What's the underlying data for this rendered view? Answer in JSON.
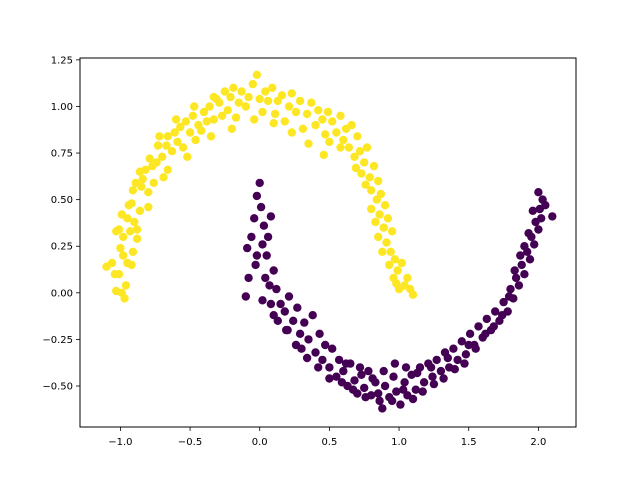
{
  "chart_data": {
    "type": "scatter",
    "title": "",
    "xlabel": "",
    "ylabel": "",
    "xlim": [
      -1.29,
      2.27
    ],
    "ylim": [
      -0.72,
      1.26
    ],
    "grid": false,
    "legend": "none",
    "marker": "circle",
    "xticks": [
      -1.0,
      -0.5,
      0.0,
      0.5,
      1.0,
      1.5,
      2.0
    ],
    "xtick_labels": [
      "−1.0",
      "−0.5",
      "0.0",
      "0.5",
      "1.0",
      "1.5",
      "2.0"
    ],
    "yticks": [
      -0.5,
      -0.25,
      0.0,
      0.25,
      0.5,
      0.75,
      1.0,
      1.25
    ],
    "ytick_labels": [
      "−0.50",
      "−0.25",
      "0.00",
      "0.25",
      "0.50",
      "0.75",
      "1.00",
      "1.25"
    ],
    "series": [
      {
        "color": "#fde725",
        "points": [
          [
            -1.1,
            0.14
          ],
          [
            -1.06,
            0.16
          ],
          [
            -1.03,
            0.33
          ],
          [
            -1.01,
            0.34
          ],
          [
            -1.0,
            0.24
          ],
          [
            -1.01,
            0.1
          ],
          [
            -0.99,
            0.0
          ],
          [
            -1.03,
            0.01
          ],
          [
            -0.97,
            -0.03
          ],
          [
            -0.96,
            0.04
          ],
          [
            -0.98,
            0.2
          ],
          [
            -0.99,
            0.42
          ],
          [
            -0.95,
            0.4
          ],
          [
            -0.94,
            0.47
          ],
          [
            -0.93,
            0.33
          ],
          [
            -0.92,
            0.15
          ],
          [
            -0.91,
            0.22
          ],
          [
            -0.91,
            0.55
          ],
          [
            -0.89,
            0.59
          ],
          [
            -0.9,
            0.38
          ],
          [
            -0.88,
            0.29
          ],
          [
            -0.86,
            0.44
          ],
          [
            -0.85,
            0.57
          ],
          [
            -0.84,
            0.61
          ],
          [
            -0.82,
            0.66
          ],
          [
            -0.8,
            0.54
          ],
          [
            -0.79,
            0.72
          ],
          [
            -0.77,
            0.68
          ],
          [
            -0.76,
            0.59
          ],
          [
            -0.74,
            0.7
          ],
          [
            -0.73,
            0.79
          ],
          [
            -0.7,
            0.73
          ],
          [
            -0.69,
            0.62
          ],
          [
            -0.67,
            0.79
          ],
          [
            -0.66,
            0.84
          ],
          [
            -0.63,
            0.76
          ],
          [
            -0.61,
            0.86
          ],
          [
            -0.59,
            0.81
          ],
          [
            -0.57,
            0.89
          ],
          [
            -0.55,
            0.78
          ],
          [
            -0.53,
            0.92
          ],
          [
            -0.5,
            0.86
          ],
          [
            -0.48,
            0.95
          ],
          [
            -0.46,
            0.82
          ],
          [
            -0.44,
            0.9
          ],
          [
            -0.42,
            0.87
          ],
          [
            -0.4,
            0.97
          ],
          [
            -0.38,
            0.92
          ],
          [
            -0.36,
            1.0
          ],
          [
            -0.33,
            0.93
          ],
          [
            -0.31,
            1.04
          ],
          [
            -0.29,
            1.02
          ],
          [
            -0.27,
            0.95
          ],
          [
            -0.25,
            1.08
          ],
          [
            -0.23,
            0.98
          ],
          [
            -0.21,
            1.05
          ],
          [
            -0.19,
            1.1
          ],
          [
            -0.17,
            0.94
          ],
          [
            -0.15,
            1.02
          ],
          [
            -0.13,
            1.08
          ],
          [
            -0.1,
            1.0
          ],
          [
            -0.08,
            1.05
          ],
          [
            -0.05,
            1.12
          ],
          [
            -0.02,
            1.17
          ],
          [
            0.0,
            1.04
          ],
          [
            0.02,
            0.97
          ],
          [
            0.04,
            1.08
          ],
          [
            0.06,
            1.03
          ],
          [
            0.09,
            1.1
          ],
          [
            0.11,
            0.96
          ],
          [
            0.13,
            1.03
          ],
          [
            0.16,
            1.06
          ],
          [
            0.18,
            0.92
          ],
          [
            0.21,
            1.0
          ],
          [
            0.23,
            1.07
          ],
          [
            0.26,
            0.97
          ],
          [
            0.29,
            1.03
          ],
          [
            0.31,
            0.88
          ],
          [
            0.34,
            0.96
          ],
          [
            0.37,
            1.02
          ],
          [
            0.4,
            0.9
          ],
          [
            0.42,
            0.98
          ],
          [
            0.45,
            0.93
          ],
          [
            0.47,
            0.85
          ],
          [
            0.49,
            0.97
          ],
          [
            0.5,
            0.81
          ],
          [
            0.52,
            0.92
          ],
          [
            0.55,
            0.86
          ],
          [
            0.58,
            0.95
          ],
          [
            0.6,
            0.82
          ],
          [
            0.62,
            0.88
          ],
          [
            0.64,
            0.78
          ],
          [
            0.66,
            0.9
          ],
          [
            0.68,
            0.73
          ],
          [
            0.7,
            0.84
          ],
          [
            0.72,
            0.76
          ],
          [
            0.73,
            0.64
          ],
          [
            0.75,
            0.7
          ],
          [
            0.77,
            0.78
          ],
          [
            0.79,
            0.62
          ],
          [
            0.8,
            0.55
          ],
          [
            0.82,
            0.68
          ],
          [
            0.84,
            0.5
          ],
          [
            0.85,
            0.6
          ],
          [
            0.86,
            0.42
          ],
          [
            0.87,
            0.53
          ],
          [
            0.89,
            0.35
          ],
          [
            0.9,
            0.47
          ],
          [
            0.91,
            0.27
          ],
          [
            0.92,
            0.4
          ],
          [
            0.93,
            0.15
          ],
          [
            0.94,
            0.22
          ],
          [
            0.95,
            0.33
          ],
          [
            0.96,
            0.08
          ],
          [
            0.97,
            0.18
          ],
          [
            0.98,
            0.05
          ],
          [
            0.99,
            0.12
          ],
          [
            1.0,
            0.02
          ],
          [
            1.02,
            0.16
          ],
          [
            1.04,
            0.04
          ],
          [
            1.06,
            0.08
          ],
          [
            1.08,
            0.02
          ],
          [
            1.1,
            -0.01
          ],
          [
            0.88,
            0.22
          ],
          [
            0.85,
            0.3
          ],
          [
            0.83,
            0.38
          ],
          [
            0.8,
            0.45
          ],
          [
            0.76,
            0.58
          ],
          [
            0.69,
            0.67
          ],
          [
            0.58,
            0.78
          ],
          [
            0.46,
            0.74
          ],
          [
            0.35,
            0.8
          ],
          [
            0.23,
            0.86
          ],
          [
            0.1,
            0.91
          ],
          [
            -0.04,
            0.93
          ],
          [
            -0.2,
            0.88
          ],
          [
            -0.35,
            0.84
          ],
          [
            -0.52,
            0.73
          ],
          [
            -0.66,
            0.66
          ],
          [
            -0.8,
            0.46
          ],
          [
            -0.88,
            0.34
          ],
          [
            -0.95,
            0.16
          ],
          [
            -1.04,
            0.1
          ],
          [
            -0.98,
            0.3
          ],
          [
            -0.92,
            0.48
          ],
          [
            -0.86,
            0.65
          ],
          [
            -0.72,
            0.84
          ],
          [
            -0.6,
            0.93
          ],
          [
            -0.47,
            1.0
          ],
          [
            -0.33,
            1.05
          ]
        ]
      },
      {
        "color": "#440154",
        "points": [
          [
            0.0,
            0.59
          ],
          [
            -0.02,
            0.52
          ],
          [
            0.01,
            0.46
          ],
          [
            -0.04,
            0.4
          ],
          [
            0.03,
            0.36
          ],
          [
            -0.06,
            0.3
          ],
          [
            0.02,
            0.26
          ],
          [
            -0.09,
            0.24
          ],
          [
            0.05,
            0.2
          ],
          [
            -0.03,
            0.15
          ],
          [
            0.06,
            0.3
          ],
          [
            0.08,
            0.41
          ],
          [
            0.1,
            0.12
          ],
          [
            0.07,
            0.04
          ],
          [
            -0.08,
            0.08
          ],
          [
            -0.1,
            -0.02
          ],
          [
            0.02,
            -0.04
          ],
          [
            0.12,
            0.02
          ],
          [
            0.15,
            -0.06
          ],
          [
            0.1,
            -0.12
          ],
          [
            0.18,
            -0.1
          ],
          [
            0.21,
            -0.02
          ],
          [
            0.24,
            -0.15
          ],
          [
            0.2,
            -0.2
          ],
          [
            0.27,
            -0.08
          ],
          [
            0.29,
            -0.22
          ],
          [
            0.32,
            -0.16
          ],
          [
            0.3,
            -0.3
          ],
          [
            0.35,
            -0.25
          ],
          [
            0.38,
            -0.12
          ],
          [
            0.4,
            -0.32
          ],
          [
            0.43,
            -0.22
          ],
          [
            0.45,
            -0.36
          ],
          [
            0.47,
            -0.28
          ],
          [
            0.5,
            -0.4
          ],
          [
            0.52,
            -0.3
          ],
          [
            0.55,
            -0.45
          ],
          [
            0.57,
            -0.36
          ],
          [
            0.6,
            -0.42
          ],
          [
            0.63,
            -0.5
          ],
          [
            0.65,
            -0.38
          ],
          [
            0.68,
            -0.47
          ],
          [
            0.7,
            -0.54
          ],
          [
            0.73,
            -0.44
          ],
          [
            0.75,
            -0.51
          ],
          [
            0.78,
            -0.42
          ],
          [
            0.8,
            -0.55
          ],
          [
            0.83,
            -0.48
          ],
          [
            0.86,
            -0.58
          ],
          [
            0.88,
            -0.62
          ],
          [
            0.9,
            -0.5
          ],
          [
            0.93,
            -0.56
          ],
          [
            0.96,
            -0.45
          ],
          [
            0.98,
            -0.53
          ],
          [
            1.01,
            -0.6
          ],
          [
            1.04,
            -0.48
          ],
          [
            1.06,
            -0.55
          ],
          [
            1.09,
            -0.44
          ],
          [
            1.12,
            -0.52
          ],
          [
            1.15,
            -0.4
          ],
          [
            1.18,
            -0.48
          ],
          [
            1.21,
            -0.38
          ],
          [
            1.24,
            -0.45
          ],
          [
            1.27,
            -0.36
          ],
          [
            1.3,
            -0.42
          ],
          [
            1.33,
            -0.32
          ],
          [
            1.36,
            -0.4
          ],
          [
            1.39,
            -0.3
          ],
          [
            1.42,
            -0.36
          ],
          [
            1.45,
            -0.26
          ],
          [
            1.48,
            -0.33
          ],
          [
            1.51,
            -0.22
          ],
          [
            1.54,
            -0.28
          ],
          [
            1.57,
            -0.18
          ],
          [
            1.6,
            -0.24
          ],
          [
            1.63,
            -0.14
          ],
          [
            1.66,
            -0.2
          ],
          [
            1.69,
            -0.1
          ],
          [
            1.72,
            -0.15
          ],
          [
            1.75,
            -0.05
          ],
          [
            1.78,
            -0.1
          ],
          [
            1.8,
            0.02
          ],
          [
            1.82,
            -0.03
          ],
          [
            1.84,
            0.08
          ],
          [
            1.86,
            0.04
          ],
          [
            1.88,
            0.15
          ],
          [
            1.9,
            0.1
          ],
          [
            1.92,
            0.22
          ],
          [
            1.94,
            0.18
          ],
          [
            1.95,
            0.3
          ],
          [
            1.97,
            0.26
          ],
          [
            1.98,
            0.38
          ],
          [
            2.0,
            0.34
          ],
          [
            2.01,
            0.45
          ],
          [
            2.02,
            0.4
          ],
          [
            2.03,
            0.5
          ],
          [
            2.0,
            0.54
          ],
          [
            2.05,
            0.47
          ],
          [
            2.1,
            0.41
          ],
          [
            1.96,
            0.44
          ],
          [
            1.93,
            0.32
          ],
          [
            1.9,
            0.25
          ],
          [
            1.87,
            0.2
          ],
          [
            1.83,
            0.12
          ],
          [
            1.79,
            -0.02
          ],
          [
            1.74,
            -0.12
          ],
          [
            1.68,
            -0.18
          ],
          [
            1.62,
            -0.22
          ],
          [
            1.55,
            -0.3
          ],
          [
            1.47,
            -0.38
          ],
          [
            1.4,
            -0.41
          ],
          [
            1.32,
            -0.46
          ],
          [
            1.25,
            -0.49
          ],
          [
            1.17,
            -0.53
          ],
          [
            1.1,
            -0.57
          ],
          [
            1.03,
            -0.52
          ],
          [
            0.95,
            -0.58
          ],
          [
            0.85,
            -0.54
          ],
          [
            0.76,
            -0.56
          ],
          [
            0.67,
            -0.52
          ],
          [
            0.59,
            -0.48
          ],
          [
            0.5,
            -0.46
          ],
          [
            0.42,
            -0.4
          ],
          [
            0.34,
            -0.35
          ],
          [
            0.26,
            -0.28
          ],
          [
            0.19,
            -0.2
          ],
          [
            0.13,
            -0.15
          ],
          [
            0.08,
            -0.06
          ],
          [
            0.04,
            0.08
          ],
          [
            -0.02,
            0.2
          ],
          [
            0.97,
            -0.38
          ],
          [
            1.05,
            -0.4
          ],
          [
            1.13,
            -0.43
          ],
          [
            0.89,
            -0.42
          ],
          [
            0.81,
            -0.46
          ],
          [
            0.72,
            -0.4
          ],
          [
            0.62,
            -0.38
          ],
          [
            1.23,
            -0.4
          ],
          [
            1.35,
            -0.35
          ],
          [
            1.5,
            -0.28
          ]
        ]
      }
    ]
  }
}
